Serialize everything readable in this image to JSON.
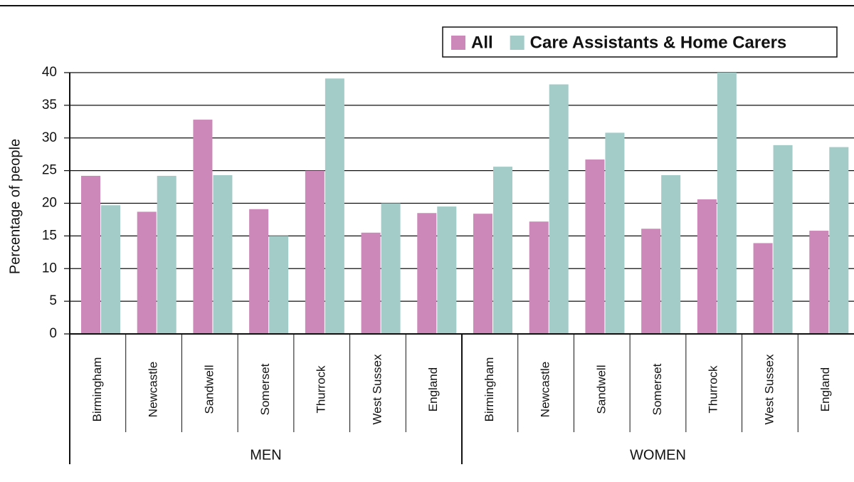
{
  "chart_data": {
    "type": "bar",
    "ylabel": "Percentage of people",
    "groups": [
      {
        "name": "MEN",
        "categories": [
          "Birmingham",
          "Newcastle",
          "Sandwell",
          "Somerset",
          "Thurrock",
          "West Sussex",
          "England"
        ]
      },
      {
        "name": "WOMEN",
        "categories": [
          "Birmingham",
          "Newcastle",
          "Sandwell",
          "Somerset",
          "Thurrock",
          "West Sussex",
          "England"
        ]
      }
    ],
    "series": [
      {
        "name": "All",
        "color": "#cc88b8",
        "values": [
          24.2,
          18.7,
          32.8,
          19.1,
          25.0,
          15.5,
          18.5,
          18.4,
          17.2,
          26.7,
          16.1,
          20.6,
          13.9,
          15.8
        ]
      },
      {
        "name": "Care Assistants & Home Carers",
        "color": "#a3cbc8",
        "values": [
          19.7,
          24.2,
          24.3,
          15.0,
          39.1,
          20.0,
          19.5,
          25.6,
          38.2,
          30.8,
          24.3,
          40.0,
          28.9,
          28.6
        ]
      }
    ],
    "ylim": [
      0,
      40
    ],
    "yticks": [
      0,
      5,
      10,
      15,
      20,
      25,
      30,
      35,
      40
    ],
    "grid": true,
    "legend": "top-right"
  }
}
